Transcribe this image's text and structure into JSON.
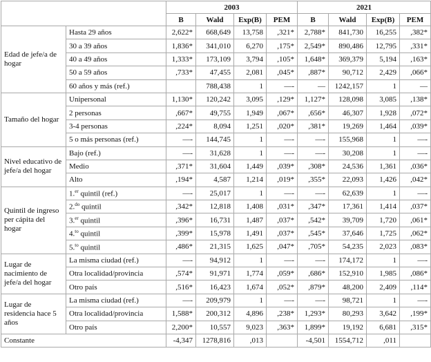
{
  "header": {
    "years": [
      "2003",
      "2021"
    ],
    "columns": [
      "B",
      "Wald",
      "Exp(B)",
      "PEM",
      "B",
      "Wald",
      "Exp(B)",
      "PEM"
    ]
  },
  "groups": [
    {
      "label": "Edad de jefe/a de hogar",
      "rows": [
        {
          "label": "Hasta 29 años",
          "cells": [
            "2,622*",
            "668,649",
            "13,758",
            ",321*",
            "2,788*",
            "841,730",
            "16,255",
            ",382*"
          ]
        },
        {
          "label": "30 a 39 años",
          "cells": [
            "1,836*",
            "341,010",
            "6,270",
            ",175*",
            "2,549*",
            "890,486",
            "12,795",
            ",331*"
          ]
        },
        {
          "label": "40 a 49 años",
          "cells": [
            "1,333*",
            "173,109",
            "3,794",
            ",105*",
            "1,648*",
            "369,379",
            "5,194",
            ",163*"
          ]
        },
        {
          "label": "50 a 59 años",
          "cells": [
            ",733*",
            "47,455",
            "2,081",
            ",045*",
            ",887*",
            "90,712",
            "2,429",
            ",066*"
          ]
        },
        {
          "label": "60 años y más (ref.)",
          "cells": [
            null,
            "788,438",
            "1",
            "—-",
            "—",
            "1242,157",
            "1",
            "—"
          ]
        }
      ]
    },
    {
      "label": "Tamaño del hogar",
      "rows": [
        {
          "label": "Unipersonal",
          "cells": [
            "1,130*",
            "120,242",
            "3,095",
            ",129*",
            "1,127*",
            "128,098",
            "3,085",
            ",138*"
          ]
        },
        {
          "label": "2 personas",
          "cells": [
            ",667*",
            "49,755",
            "1,949",
            ",067*",
            ",656*",
            "46,307",
            "1,928",
            ",072*"
          ]
        },
        {
          "label": "3-4 personas",
          "cells": [
            ",224*",
            "8,094",
            "1,251",
            ",020*",
            ",381*",
            "19,269",
            "1,464",
            ",039*"
          ]
        },
        {
          "label": "5 o más personas (ref.)",
          "cells": [
            "—-",
            "144,745",
            "1",
            "—-",
            "—-",
            "155,968",
            "1",
            "—-"
          ]
        }
      ]
    },
    {
      "label": "Nivel educativo de jefe/a del hogar",
      "rows": [
        {
          "label": "Bajo (ref.)",
          "cells": [
            "—-",
            "31,628",
            "1",
            "—-",
            "—-",
            "30,208",
            "1",
            "—-"
          ]
        },
        {
          "label": "Medio",
          "cells": [
            ",371*",
            "31,604",
            "1,449",
            ",039*",
            ",308*",
            "24,536",
            "1,361",
            ",036*"
          ]
        },
        {
          "label": "Alto",
          "cells": [
            ",194*",
            "4,587",
            "1,214",
            ",019*",
            ",355*",
            "22,093",
            "1,426",
            ",042*"
          ]
        }
      ]
    },
    {
      "label": "Quintil de ingreso per cápita del hogar",
      "rows": [
        {
          "label": {
            "pre": "1.",
            "sup": "er",
            "post": " quintil (ref.)"
          },
          "cells": [
            "—-",
            "25,017",
            "1",
            "—-",
            "—-",
            "62,639",
            "1",
            "—-"
          ]
        },
        {
          "label": {
            "pre": "2.",
            "sup": "do",
            "post": " quintil"
          },
          "cells": [
            ",342*",
            "12,818",
            "1,408",
            ",031*",
            ",347*",
            "17,361",
            "1,414",
            ",037*"
          ]
        },
        {
          "label": {
            "pre": "3.",
            "sup": "er",
            "post": " quintil"
          },
          "cells": [
            ",396*",
            "16,731",
            "1,487",
            ",037*",
            ",542*",
            "39,709",
            "1,720",
            ",061*"
          ]
        },
        {
          "label": {
            "pre": "4.",
            "sup": "to",
            "post": " quintil"
          },
          "cells": [
            ",399*",
            "15,978",
            "1,491",
            ",037*",
            ",545*",
            "37,646",
            "1,725",
            ",062*"
          ]
        },
        {
          "label": {
            "pre": "5.",
            "sup": "to",
            "post": " quintil"
          },
          "cells": [
            ",486*",
            "21,315",
            "1,625",
            ",047*",
            ",705*",
            "54,235",
            "2,023",
            ",083*"
          ]
        }
      ]
    },
    {
      "label": "Lugar de nacimiento de jefe/a del hogar",
      "rows": [
        {
          "label": "La misma ciudad (ref.)",
          "cells": [
            "—-",
            "94,912",
            "1",
            "—-",
            "—-",
            "174,172",
            "1",
            "—-"
          ]
        },
        {
          "label": "Otra localidad/provincia",
          "cells": [
            ",574*",
            "91,971",
            "1,774",
            ",059*",
            ",686*",
            "152,910",
            "1,985",
            ",086*"
          ]
        },
        {
          "label": "Otro país",
          "cells": [
            ",516*",
            "16,423",
            "1,674",
            ",052*",
            ",879*",
            "48,200",
            "2,409",
            ",114*"
          ]
        }
      ]
    },
    {
      "label": "Lugar de residencia hace 5 años",
      "rows": [
        {
          "label": "La misma ciudad (ref.)",
          "cells": [
            "—-",
            "209,979",
            "1",
            "—-",
            "—-",
            "98,721",
            "1",
            "—-"
          ]
        },
        {
          "label": "Otra localidad/provincia",
          "cells": [
            "1,588*",
            "200,312",
            "4,896",
            ",238*",
            "1,293*",
            "80,293",
            "3,642",
            ",199*"
          ]
        },
        {
          "label": "Otro país",
          "cells": [
            "2,200*",
            "10,557",
            "9,023",
            ",363*",
            "1,899*",
            "19,192",
            "6,681",
            ",315*"
          ]
        }
      ]
    }
  ],
  "constant": {
    "label": "Constante",
    "cells": [
      "-4,347",
      "1278,816",
      ",013",
      null,
      "-4,501",
      "1554,712",
      ",011",
      null
    ]
  }
}
